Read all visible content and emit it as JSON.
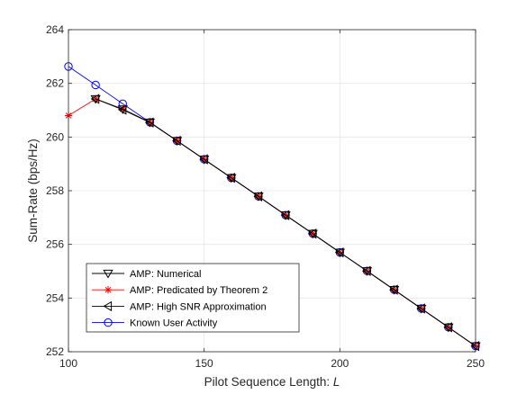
{
  "chart_data": {
    "type": "line",
    "xlabel": "Pilot Sequence Length: ",
    "xlabel_var": "L",
    "ylabel": "Sum-Rate (bps/Hz)",
    "xlim": [
      100,
      250
    ],
    "ylim": [
      252,
      264
    ],
    "xticks": [
      100,
      150,
      200,
      250
    ],
    "yticks": [
      252,
      254,
      256,
      258,
      260,
      262,
      264
    ],
    "xtick_labels": [
      "100",
      "150",
      "200",
      "250"
    ],
    "ytick_labels": [
      "252",
      "254",
      "256",
      "258",
      "260",
      "262",
      "264"
    ],
    "grid": true,
    "legend_position": "lower-left",
    "x": [
      100,
      110,
      120,
      130,
      140,
      150,
      160,
      170,
      180,
      190,
      200,
      210,
      220,
      230,
      240,
      250
    ],
    "series": [
      {
        "name": "AMP: Numerical",
        "color": "#000000",
        "marker": "triangle-down",
        "values": [
          null,
          261.42,
          261.04,
          260.55,
          259.86,
          259.17,
          258.48,
          257.79,
          257.09,
          256.4,
          255.7,
          255.01,
          254.31,
          253.61,
          252.91,
          252.21
        ]
      },
      {
        "name": "AMP: Predicated by Theorem 2",
        "color": "#ff0000",
        "marker": "asterisk",
        "values": [
          260.8,
          261.42,
          261.04,
          260.55,
          259.86,
          259.17,
          258.48,
          257.79,
          257.09,
          256.4,
          255.7,
          255.01,
          254.31,
          253.61,
          252.91,
          252.21
        ]
      },
      {
        "name": "AMP: High SNR Approximation",
        "color": "#000000",
        "marker": "triangle-left",
        "values": [
          null,
          261.42,
          261.02,
          260.54,
          259.86,
          259.17,
          258.48,
          257.79,
          257.09,
          256.4,
          255.7,
          255.01,
          254.31,
          253.61,
          252.91,
          252.21
        ]
      },
      {
        "name": "Known User Activity",
        "color": "#0000ff",
        "marker": "circle",
        "values": [
          262.63,
          261.94,
          261.24,
          260.55,
          259.86,
          259.17,
          258.48,
          257.79,
          257.09,
          256.4,
          255.7,
          255.01,
          254.31,
          253.61,
          252.91,
          252.21
        ]
      }
    ]
  }
}
